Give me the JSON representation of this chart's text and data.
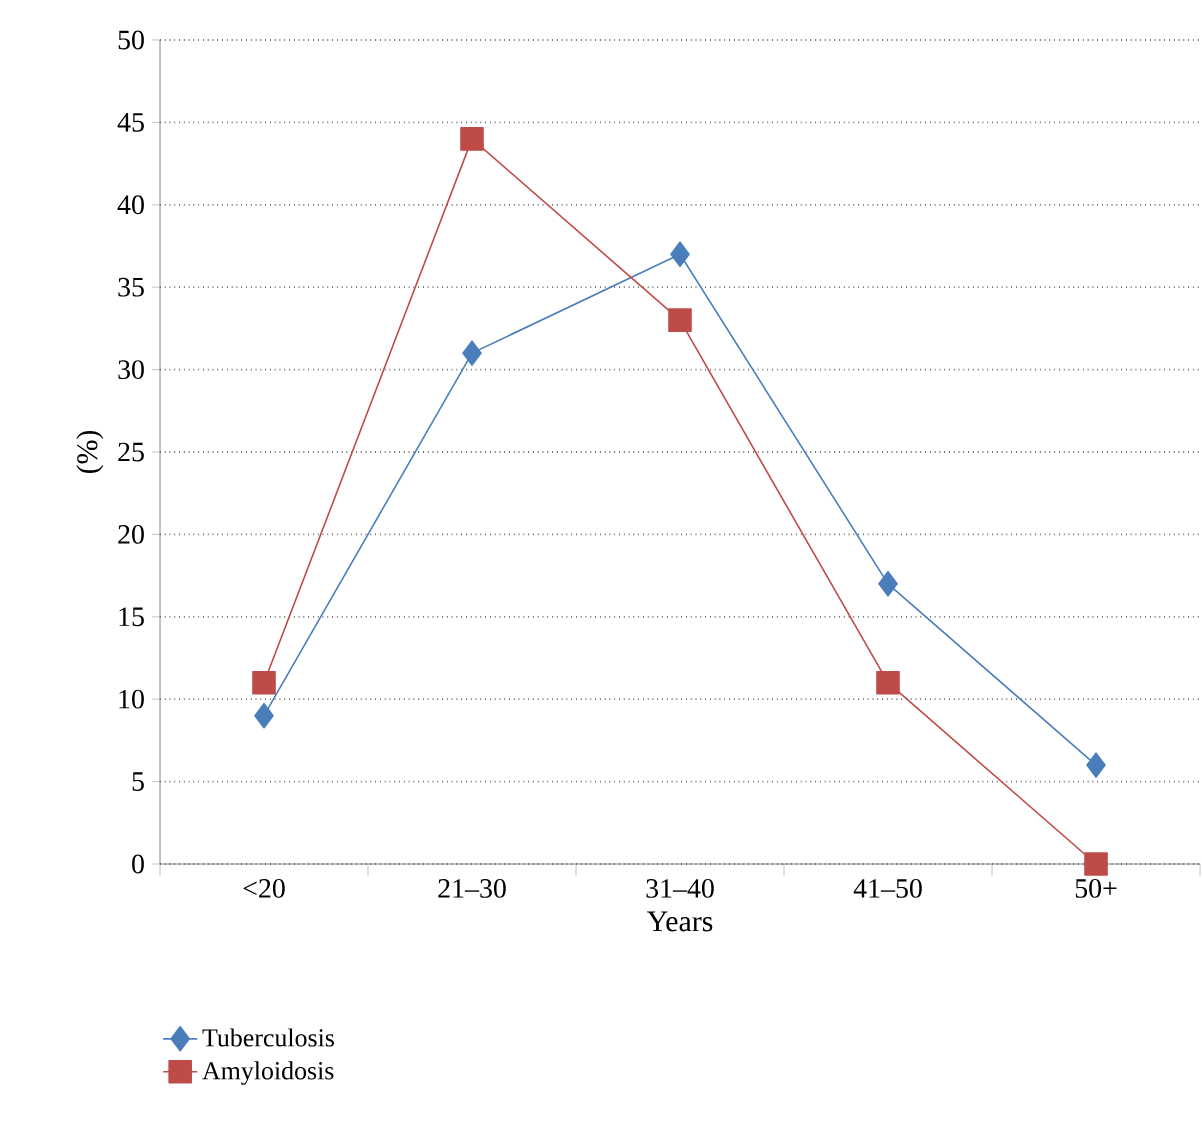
{
  "chart_data": {
    "type": "line",
    "xlabel": "Years",
    "ylabel": "(%)",
    "categories": [
      "<20",
      "21–30",
      "31–40",
      "41–50",
      "50+"
    ],
    "series": [
      {
        "name": "Tuberculosis",
        "color": "#4a7ebb",
        "marker": "diamond",
        "values": [
          9,
          31,
          37,
          17,
          6
        ]
      },
      {
        "name": "Amyloidosis",
        "color": "#be4b48",
        "marker": "square",
        "values": [
          11,
          44,
          33,
          11,
          0
        ]
      }
    ],
    "ylim": [
      0,
      50
    ],
    "yticks": [
      0,
      5,
      10,
      15,
      20,
      25,
      30,
      35,
      40,
      45,
      50
    ],
    "grid": "y",
    "legend": "bottom left",
    "line_style": "solid"
  }
}
